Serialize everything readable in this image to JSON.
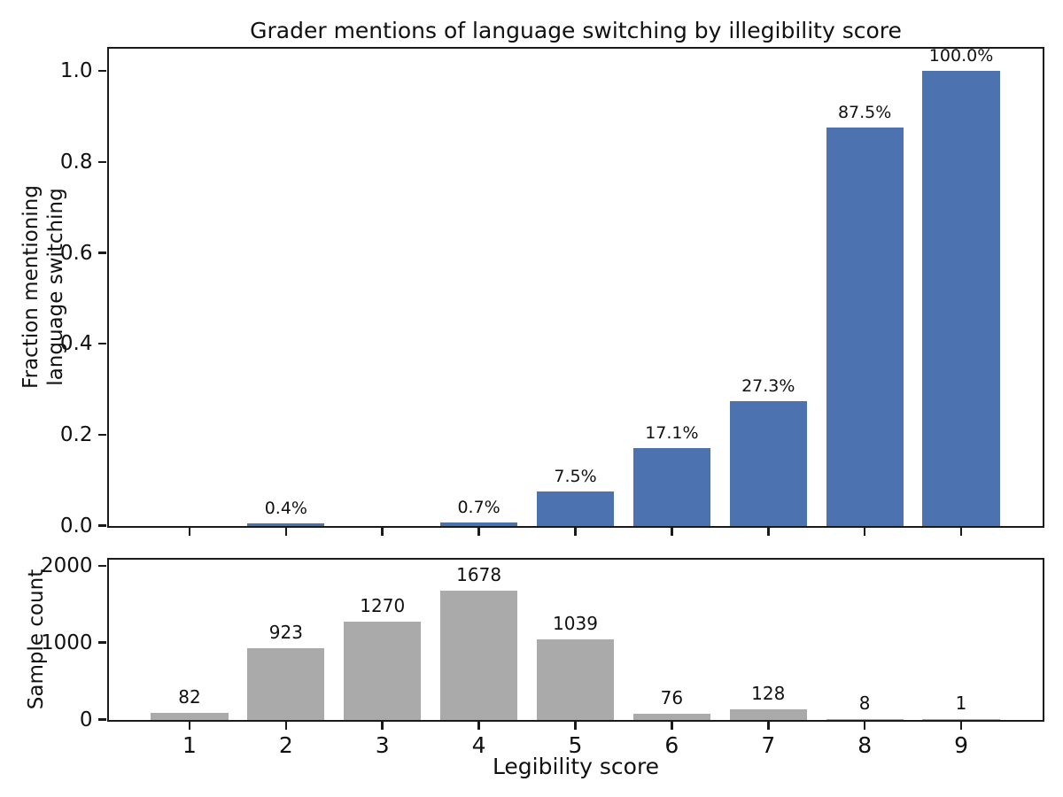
{
  "title": "Grader mentions of language switching by illegibility score",
  "chart_data": [
    {
      "type": "bar",
      "categories": [
        1,
        2,
        3,
        4,
        5,
        6,
        7,
        8,
        9
      ],
      "values": [
        0.0,
        0.004,
        0.0,
        0.007,
        0.075,
        0.171,
        0.273,
        0.875,
        1.0
      ],
      "bar_labels": [
        "",
        "0.4%",
        "",
        "0.7%",
        "7.5%",
        "17.1%",
        "27.3%",
        "87.5%",
        "100.0%"
      ],
      "ylabel": "Fraction mentioning\nlanguage switching",
      "xlabel": "",
      "yticks": [
        0.0,
        0.2,
        0.4,
        0.6,
        0.8,
        1.0
      ],
      "ytick_labels": [
        "0.0",
        "0.2",
        "0.4",
        "0.6",
        "0.8",
        "1.0"
      ],
      "xtick_labels": [
        "",
        "",
        "",
        "",
        "",
        "",
        "",
        "",
        ""
      ],
      "ylim": [
        0,
        1.05
      ],
      "xlim": [
        0.16,
        9.84
      ],
      "bar_width": 0.8,
      "bar_color": "#4C72B0",
      "grid": false,
      "legend": null
    },
    {
      "type": "bar",
      "categories": [
        1,
        2,
        3,
        4,
        5,
        6,
        7,
        8,
        9
      ],
      "values": [
        82,
        923,
        1270,
        1678,
        1039,
        76,
        128,
        8,
        1
      ],
      "bar_labels": [
        "82",
        "923",
        "1270",
        "1678",
        "1039",
        "76",
        "128",
        "8",
        "1"
      ],
      "ylabel": "Sample count",
      "xlabel": "Legibility score",
      "yticks": [
        0,
        1000,
        2000
      ],
      "ytick_labels": [
        "0",
        "1000",
        "2000"
      ],
      "xtick_labels": [
        "1",
        "2",
        "3",
        "4",
        "5",
        "6",
        "7",
        "8",
        "9"
      ],
      "ylim": [
        0,
        2085
      ],
      "xlim": [
        0.16,
        9.84
      ],
      "bar_width": 0.8,
      "bar_color": "#AAAAAA",
      "grid": false,
      "legend": null
    }
  ],
  "colors": {
    "fraction_bar": "#4C72B0",
    "count_bar": "#AAAAAA",
    "spine": "#1a1a1a",
    "text": "#111111",
    "background": "#ffffff"
  }
}
